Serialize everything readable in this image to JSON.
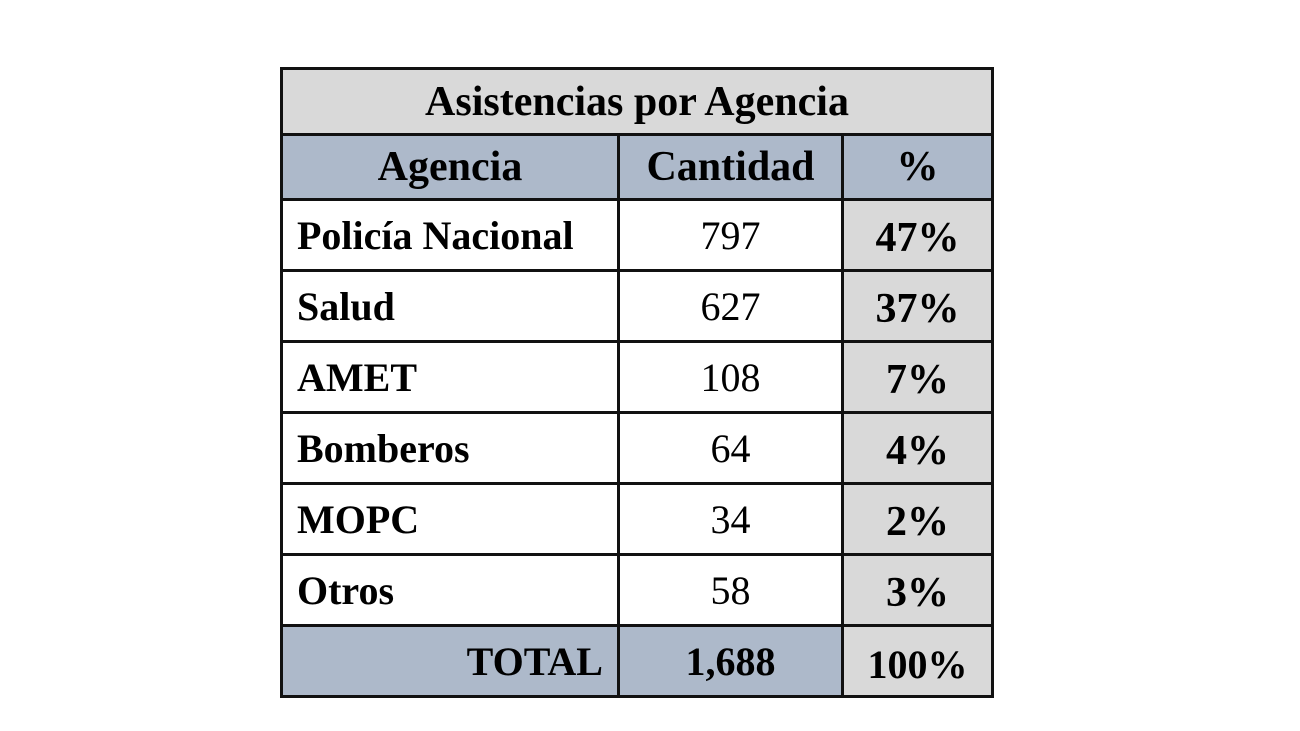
{
  "title": "Asistencias por Agencia",
  "headers": [
    "Agencia",
    "Cantidad",
    "%"
  ],
  "rows": [
    {
      "agencia": "Policía Nacional",
      "cantidad": "797",
      "pct": "47%"
    },
    {
      "agencia": "Salud",
      "cantidad": "627",
      "pct": "37%"
    },
    {
      "agencia": "AMET",
      "cantidad": "108",
      "pct": "7%"
    },
    {
      "agencia": "Bomberos",
      "cantidad": "64",
      "pct": "4%"
    },
    {
      "agencia": "MOPC",
      "cantidad": "34",
      "pct": "2%"
    },
    {
      "agencia": "Otros",
      "cantidad": "58",
      "pct": "3%"
    }
  ],
  "total": {
    "label": "TOTAL",
    "cantidad": "1,688",
    "pct": "100%"
  },
  "colors": {
    "title_bg": "#d9d9d9",
    "header_bg": "#adb9ca",
    "pct_bg": "#d9d9d9"
  }
}
